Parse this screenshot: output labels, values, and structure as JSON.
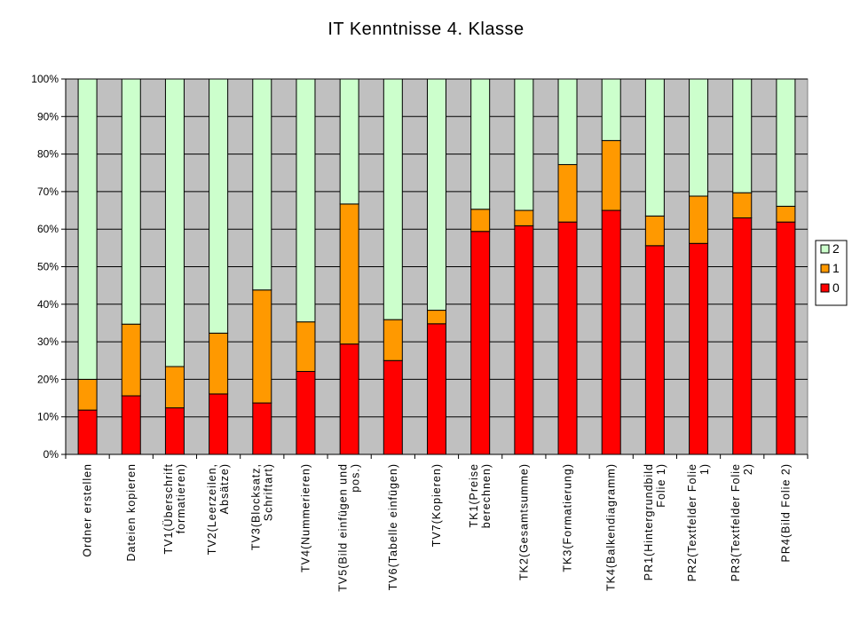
{
  "chart_data": {
    "type": "bar",
    "stacked": "percent",
    "title": "IT Kenntnisse 4. Klasse",
    "xlabel": "",
    "ylabel": "",
    "ylim": [
      0,
      100
    ],
    "yticks": [
      "0%",
      "10%",
      "20%",
      "30%",
      "40%",
      "50%",
      "60%",
      "70%",
      "80%",
      "90%",
      "100%"
    ],
    "grid": true,
    "legend": "right",
    "plot_background": "#c0c0c0",
    "categories": [
      [
        "Ordner erstellen"
      ],
      [
        "Dateien kopieren"
      ],
      [
        "TV1(Überschrift",
        "formatieren)"
      ],
      [
        "TV2(Leerzeilen,",
        "Absätze)"
      ],
      [
        "TV3(Blocksatz,",
        "Schriftart)"
      ],
      [
        "TV4(Nummerieren)"
      ],
      [
        "TV5(Bild einfügen und",
        "pos.)"
      ],
      [
        "TV6(Tabelle einfügen)"
      ],
      [
        "TV7(Kopieren)"
      ],
      [
        "TK1(Preise",
        "berechnen)"
      ],
      [
        "TK2(Gesamtsumme)"
      ],
      [
        "TK3(Formatierung)"
      ],
      [
        "TK4(Balkendiagramm)"
      ],
      [
        "PR1(Hintergrundbild",
        "Folie 1)"
      ],
      [
        "PR2(Textfelder Folie",
        "1)"
      ],
      [
        "PR3(Textfelder Folie",
        "2)"
      ],
      [
        "PR4(Bild Folie 2)"
      ]
    ],
    "series": [
      {
        "name": "0",
        "color": "#ff0000",
        "values": [
          11.8,
          15.6,
          12.4,
          16.1,
          13.7,
          22.1,
          29.4,
          25.0,
          34.8,
          59.4,
          60.9,
          61.9,
          65.0,
          55.6,
          56.2,
          63.0,
          61.9
        ]
      },
      {
        "name": "1",
        "color": "#ff9900",
        "values": [
          8.2,
          19.1,
          11.0,
          16.2,
          30.1,
          13.2,
          37.3,
          10.9,
          3.6,
          5.9,
          4.1,
          15.3,
          18.6,
          7.9,
          12.6,
          6.7,
          4.2
        ]
      },
      {
        "name": "2",
        "color": "#ccffcc",
        "values": [
          80.0,
          65.3,
          76.6,
          67.7,
          56.2,
          64.7,
          33.3,
          64.1,
          61.6,
          34.7,
          35.0,
          22.8,
          16.4,
          36.5,
          31.2,
          30.3,
          33.9
        ]
      }
    ]
  }
}
